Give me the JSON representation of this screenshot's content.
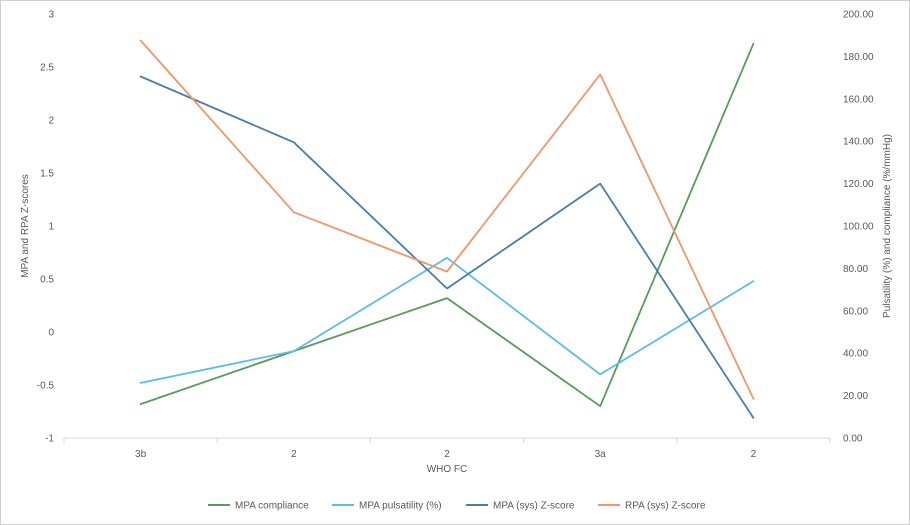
{
  "chart_data": {
    "type": "line",
    "title": "",
    "categories": [
      "3b",
      "2",
      "2",
      "3a",
      "2"
    ],
    "xlabel": "WHO FC",
    "ylabel_left": "MPA and RPA Z-scores",
    "ylabel_right": "Pulsatility (%) and compliance (%/mmHg)",
    "ylim_left": [
      -1,
      3
    ],
    "yticks_left": [
      "-1",
      "-0.5",
      "0",
      "0.5",
      "1",
      "1.5",
      "2",
      "2.5",
      "3"
    ],
    "ylim_right": [
      0,
      200
    ],
    "yticks_right": [
      "0.00",
      "20.00",
      "40.00",
      "60.00",
      "80.00",
      "100.00",
      "120.00",
      "140.00",
      "160.00",
      "180.00",
      "200.00"
    ],
    "grid": false,
    "legend_position": "bottom",
    "series": [
      {
        "name": "MPA compliance",
        "axis": "right",
        "color": "#5a9a5a",
        "values": [
          16,
          41,
          66,
          15,
          186
        ]
      },
      {
        "name": "MPA pulsatility (%)",
        "axis": "right",
        "color": "#5bbde8",
        "values": [
          26,
          41,
          85,
          30,
          74
        ]
      },
      {
        "name": "MPA (sys) Z-score",
        "axis": "left",
        "color": "#4a7ea8",
        "values": [
          2.41,
          1.79,
          0.41,
          1.4,
          -0.81
        ]
      },
      {
        "name": "RPA (sys) Z-score",
        "axis": "left",
        "color": "#f0966a",
        "values": [
          2.75,
          1.13,
          0.57,
          2.43,
          -0.63
        ]
      }
    ]
  }
}
